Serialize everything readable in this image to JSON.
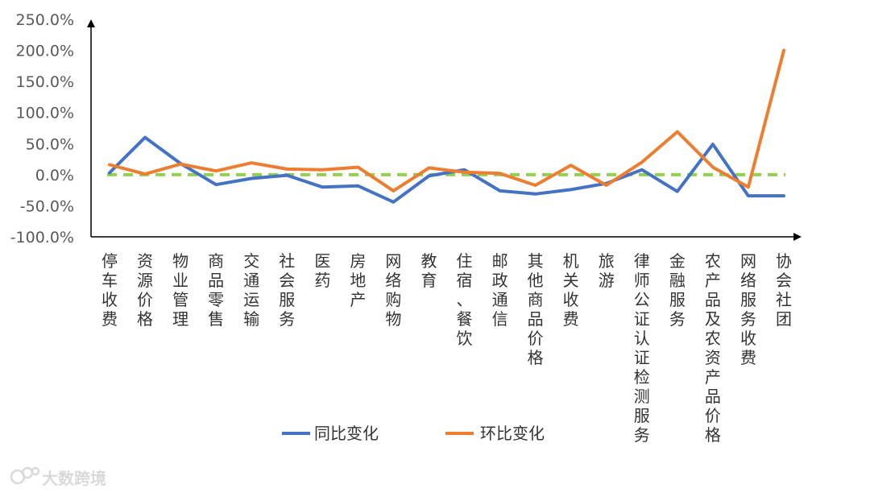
{
  "chart_data": {
    "type": "line",
    "categories": [
      "停车收费",
      "资源价格",
      "物业管理",
      "商品零售",
      "交通运输",
      "社会服务",
      "医药",
      "房地产",
      "网络购物",
      "教育",
      "住宿、餐饮",
      "邮政通信",
      "其他商品价格",
      "机关收费",
      "旅游",
      "律师公证认证检测服务",
      "金融服务",
      "农产品及农资产品价格",
      "网络服务收费",
      "协会社团"
    ],
    "series": [
      {
        "name": "同比变化",
        "color": "#4472C4",
        "values": [
          3,
          60,
          18,
          -16,
          -6,
          -1,
          -20,
          -18,
          -44,
          -2,
          8,
          -26,
          -31,
          -24,
          -14,
          8,
          -27,
          49,
          -34,
          -34
        ]
      },
      {
        "name": "环比变化",
        "color": "#ED7D31",
        "values": [
          16,
          1,
          17,
          6,
          19,
          9,
          8,
          12,
          -26,
          11,
          4,
          2,
          -17,
          15,
          -17,
          20,
          69,
          12,
          -20,
          200
        ]
      }
    ],
    "reference_line": {
      "value": 0,
      "color": "#92D050",
      "style": "dashed"
    },
    "ylim": [
      -100,
      250
    ],
    "yticks": [
      "250.0%",
      "200.0%",
      "150.0%",
      "100.0%",
      "50.0%",
      "0.0%",
      "-50.0%",
      "-100.0%"
    ],
    "ytick_values": [
      250,
      200,
      150,
      100,
      50,
      0,
      -50,
      -100
    ],
    "legend_position": "bottom",
    "grid": false
  },
  "watermark": {
    "text": "大数跨境"
  }
}
